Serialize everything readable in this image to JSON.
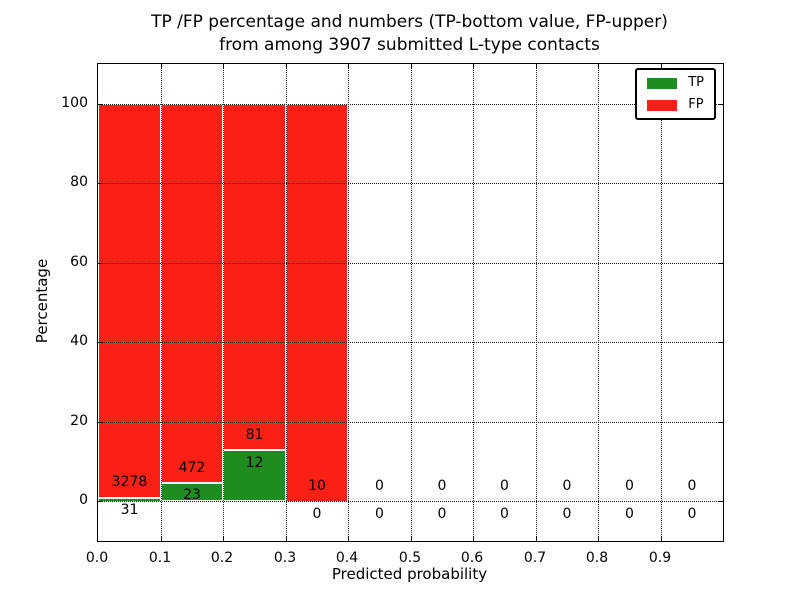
{
  "title": {
    "line1": "TP /FP percentage and numbers (TP-bottom value, FP-upper)",
    "line2": "from among 3907 submitted L-type contacts"
  },
  "axes": {
    "xlabel": "Predicted probability",
    "ylabel": "Percentage",
    "xtick_labels": [
      "0.0",
      "0.1",
      "0.2",
      "0.3",
      "0.4",
      "0.5",
      "0.6",
      "0.7",
      "0.8",
      "0.9"
    ]
  },
  "legend": {
    "items": [
      {
        "label": "TP",
        "color": "#1f8c1f"
      },
      {
        "label": "FP",
        "color": "#fb2015"
      }
    ]
  },
  "chart_data": {
    "type": "bar",
    "stacked": true,
    "title": "TP /FP percentage and numbers (TP-bottom value, FP-upper) from among 3907 submitted L-type contacts",
    "xlabel": "Predicted probability",
    "ylabel": "Percentage",
    "xlim": [
      0.0,
      1.0
    ],
    "ylim": [
      -10,
      110
    ],
    "yticks": [
      0,
      20,
      40,
      60,
      80,
      100
    ],
    "xticks": [
      0.0,
      0.1,
      0.2,
      0.3,
      0.4,
      0.5,
      0.6,
      0.7,
      0.8,
      0.9
    ],
    "bin_width": 0.1,
    "total_contacts": 3907,
    "grid": "dotted both axes",
    "legend_position": "upper right",
    "series_names": [
      "TP",
      "FP"
    ],
    "bins": [
      {
        "range": [
          0.0,
          0.1
        ],
        "tp_count": 31,
        "fp_count": 3278,
        "tp_pct": 0.94,
        "fp_pct": 99.06,
        "has_bar": true
      },
      {
        "range": [
          0.1,
          0.2
        ],
        "tp_count": 23,
        "fp_count": 472,
        "tp_pct": 4.65,
        "fp_pct": 95.35,
        "has_bar": true
      },
      {
        "range": [
          0.2,
          0.3
        ],
        "tp_count": 12,
        "fp_count": 81,
        "tp_pct": 12.9,
        "fp_pct": 87.1,
        "has_bar": true
      },
      {
        "range": [
          0.3,
          0.4
        ],
        "tp_count": 0,
        "fp_count": 10,
        "tp_pct": 0.0,
        "fp_pct": 100.0,
        "has_bar": true
      },
      {
        "range": [
          0.4,
          0.5
        ],
        "tp_count": 0,
        "fp_count": 0,
        "tp_pct": 0.0,
        "fp_pct": 0.0,
        "has_bar": false
      },
      {
        "range": [
          0.5,
          0.6
        ],
        "tp_count": 0,
        "fp_count": 0,
        "tp_pct": 0.0,
        "fp_pct": 0.0,
        "has_bar": false
      },
      {
        "range": [
          0.6,
          0.7
        ],
        "tp_count": 0,
        "fp_count": 0,
        "tp_pct": 0.0,
        "fp_pct": 0.0,
        "has_bar": false
      },
      {
        "range": [
          0.7,
          0.8
        ],
        "tp_count": 0,
        "fp_count": 0,
        "tp_pct": 0.0,
        "fp_pct": 0.0,
        "has_bar": false
      },
      {
        "range": [
          0.8,
          0.9
        ],
        "tp_count": 0,
        "fp_count": 0,
        "tp_pct": 0.0,
        "fp_pct": 0.0,
        "has_bar": false
      },
      {
        "range": [
          0.9,
          1.0
        ],
        "tp_count": 0,
        "fp_count": 0,
        "tp_pct": 0.0,
        "fp_pct": 0.0,
        "has_bar": false
      }
    ]
  }
}
